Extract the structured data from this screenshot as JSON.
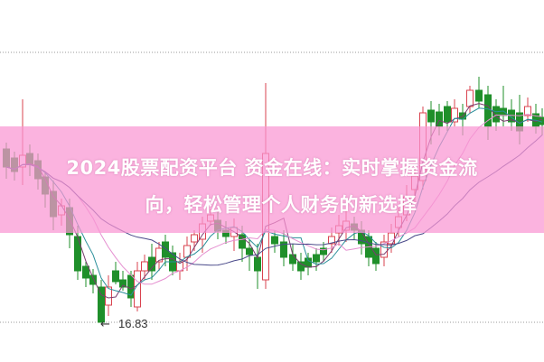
{
  "title": {
    "line1": "2024股票配资平台 资金在线：实时掌握资金流",
    "line2": "向，轻松管理个人财务的新选择"
  },
  "chart_data": {
    "type": "candlestick",
    "annotations": [
      {
        "text": "16.83",
        "meaning": "period low"
      }
    ],
    "grid": "dotted horizontal lines",
    "colors": {
      "up": "#d9434f",
      "down": "#1f8f2a",
      "banner": "#f9a3d6",
      "ma_lines": [
        "#7a3c6e",
        "#2a8f9a",
        "#e58fd0",
        "#4a4a8a"
      ]
    }
  }
}
